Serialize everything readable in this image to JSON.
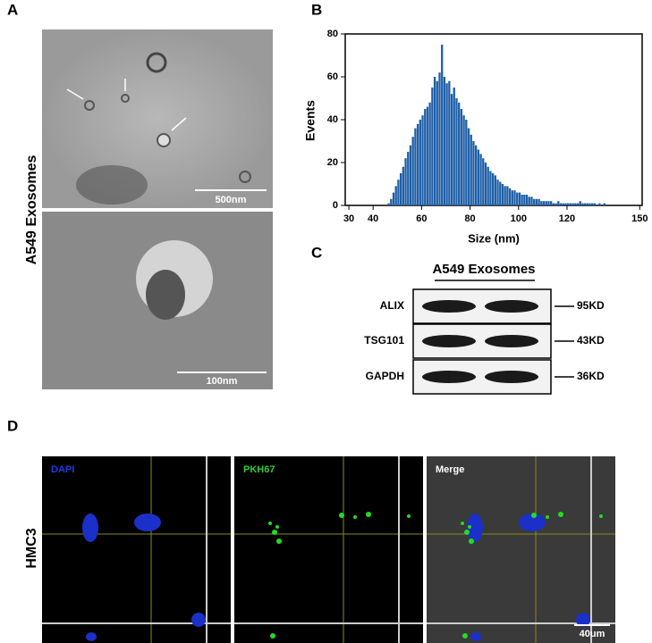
{
  "panel_labels": [
    "A",
    "B",
    "C",
    "D"
  ],
  "tem": {
    "side_label": "A549 Exosomes",
    "scale_bars": [
      "500nm",
      "100nm"
    ]
  },
  "chart_data": {
    "type": "histogram",
    "x_label": "Size (nm)",
    "y_label": "Events",
    "color": "#1f5fa8",
    "bins": [
      46,
      47,
      48,
      49,
      50,
      51,
      52,
      53,
      54,
      55,
      56,
      57,
      58,
      59,
      60,
      61,
      62,
      63,
      64,
      65,
      66,
      67,
      68,
      69,
      70,
      71,
      72,
      73,
      74,
      75,
      76,
      77,
      78,
      79,
      80,
      81,
      82,
      83,
      84,
      85,
      86,
      87,
      88,
      89,
      90,
      91,
      92,
      93,
      94,
      95,
      96,
      97,
      98,
      99,
      100,
      101,
      102,
      103,
      104,
      105,
      106,
      107,
      108,
      109,
      110,
      111,
      112,
      113,
      114,
      115,
      116,
      117,
      118,
      119,
      120,
      121,
      122,
      123,
      124,
      125,
      126,
      127,
      128,
      129,
      130,
      131,
      132,
      133,
      134,
      135,
      136
    ],
    "counts": [
      1,
      3,
      6,
      9,
      12,
      15,
      18,
      22,
      25,
      28,
      32,
      36,
      38,
      40,
      42,
      45,
      46,
      48,
      55,
      60,
      58,
      62,
      75,
      60,
      57,
      58,
      52,
      55,
      50,
      48,
      45,
      42,
      40,
      36,
      33,
      30,
      28,
      26,
      24,
      22,
      20,
      18,
      16,
      15,
      14,
      12,
      11,
      10,
      9,
      9,
      8,
      7,
      7,
      6,
      6,
      5,
      5,
      5,
      4,
      4,
      3,
      3,
      3,
      2,
      2,
      2,
      2,
      2,
      1,
      1,
      2,
      1,
      1,
      1,
      1,
      1,
      1,
      1,
      1,
      2,
      1,
      1,
      1,
      1,
      1,
      1,
      0,
      1,
      0,
      1
    ],
    "xlim": [
      28.5,
      151
    ],
    "ylim": [
      0,
      80
    ],
    "xticks": [
      30,
      40,
      60,
      80,
      100,
      120,
      150
    ],
    "yticks": [
      0,
      20,
      40,
      60,
      80
    ]
  },
  "western_blot": {
    "title": "A549 Exosomes",
    "rows": [
      {
        "protein": "ALIX",
        "marker": "95KD"
      },
      {
        "protein": "TSG101",
        "marker": "43KD"
      },
      {
        "protein": "GAPDH",
        "marker": "36KD"
      }
    ]
  },
  "fluorescence": {
    "cell_line": "HMC3",
    "channels": [
      "DAPI",
      "PKH67",
      "Merge"
    ],
    "scale_bar": "40um"
  }
}
